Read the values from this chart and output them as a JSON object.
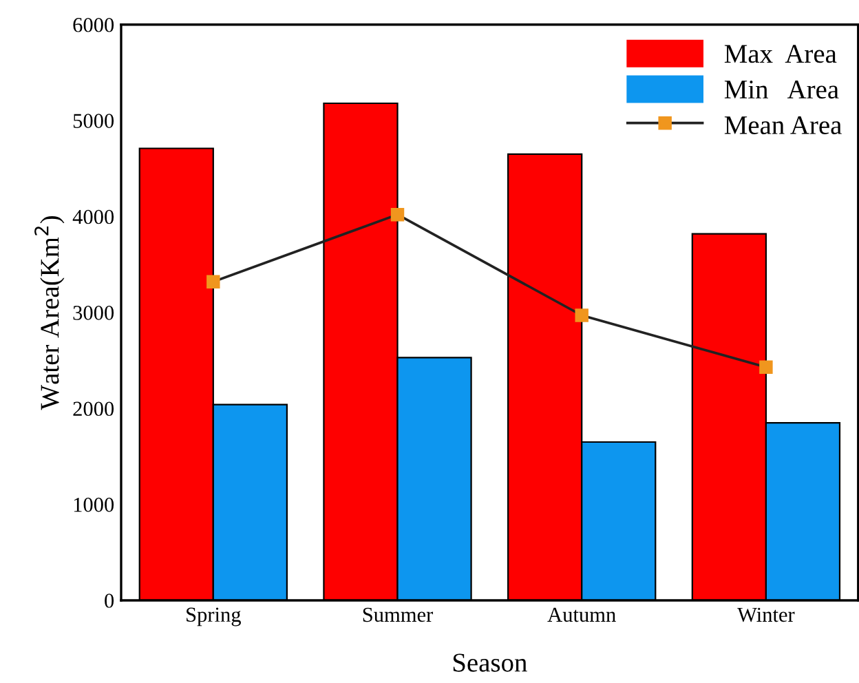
{
  "chart_data": {
    "type": "bar",
    "xlabel": "Season",
    "ylabel": "Water Area(Km$^{2}$)",
    "categories": [
      "Spring",
      "Summer",
      "Autumn",
      "Winter"
    ],
    "series": [
      {
        "name": "Max  Area",
        "color": "#fe0000",
        "values": [
          4710,
          5180,
          4650,
          3820
        ]
      },
      {
        "name": "Min   Area",
        "color": "#0d96ef",
        "values": [
          2040,
          2530,
          1650,
          1850
        ]
      },
      {
        "name": "Mean Area",
        "type": "line",
        "color": "#f0961e",
        "marker": "square",
        "values": [
          3320,
          4020,
          2970,
          2430
        ]
      }
    ],
    "ylim": [
      0,
      6000
    ],
    "yticks": [
      0,
      1000,
      2000,
      3000,
      4000,
      5000,
      6000
    ],
    "grid": false,
    "legend": "top right"
  }
}
